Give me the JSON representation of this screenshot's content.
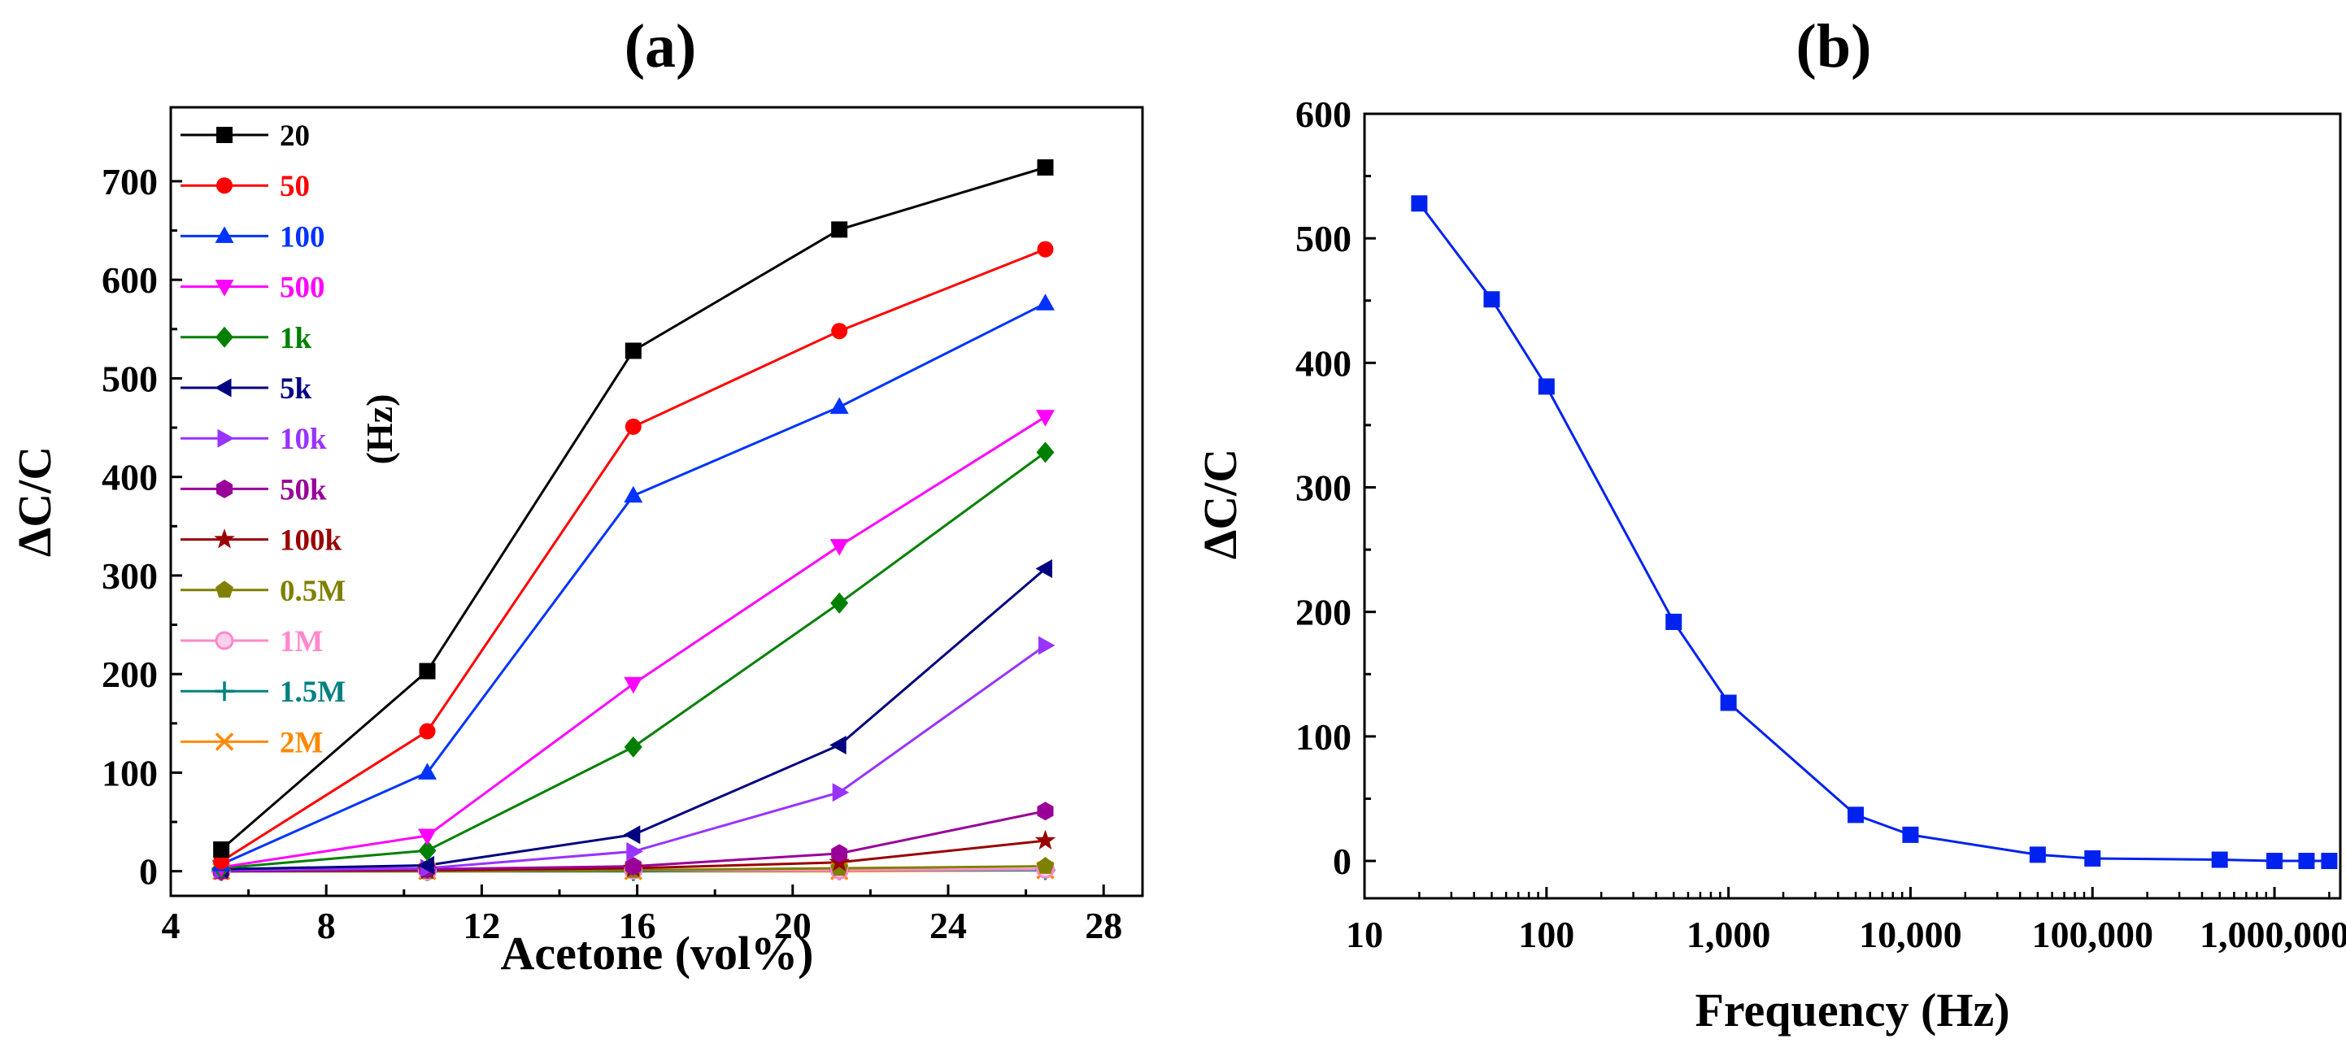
{
  "chart_data": [
    {
      "panel_label": "(a)",
      "type": "line",
      "xlabel": "Acetone (vol%)",
      "ylabel": "ΔC/C",
      "xlim": [
        4,
        29
      ],
      "ylim": [
        -25,
        775
      ],
      "xticks": [
        4,
        8,
        12,
        16,
        20,
        24,
        28
      ],
      "yticks": [
        0,
        100,
        200,
        300,
        400,
        500,
        600,
        700
      ],
      "legend_unit": "(Hz)",
      "legend_position": "top-left",
      "x": [
        5.3,
        10.6,
        15.9,
        21.2,
        26.5
      ],
      "series": [
        {
          "name": "20",
          "color": "#000000",
          "marker": "square",
          "values": [
            22,
            203,
            528,
            651,
            714
          ]
        },
        {
          "name": "50",
          "color": "#ff0000",
          "marker": "circle",
          "values": [
            10,
            142,
            451,
            548,
            631
          ]
        },
        {
          "name": "100",
          "color": "#0033ff",
          "marker": "triangle-up",
          "values": [
            7,
            100,
            381,
            471,
            576
          ]
        },
        {
          "name": "500",
          "color": "#ff00ff",
          "marker": "triangle-down",
          "values": [
            4,
            36,
            190,
            330,
            461
          ]
        },
        {
          "name": "1k",
          "color": "#008000",
          "marker": "diamond",
          "values": [
            3,
            21,
            126,
            272,
            425
          ]
        },
        {
          "name": "5k",
          "color": "#000080",
          "marker": "triangle-left",
          "values": [
            2,
            6,
            37,
            128,
            307
          ]
        },
        {
          "name": "10k",
          "color": "#9933ff",
          "marker": "triangle-right",
          "values": [
            1,
            3,
            20,
            80,
            229
          ]
        },
        {
          "name": "50k",
          "color": "#990099",
          "marker": "hexagon",
          "values": [
            0,
            2,
            5,
            18,
            61
          ]
        },
        {
          "name": "100k",
          "color": "#990000",
          "marker": "star",
          "values": [
            0,
            1,
            3,
            9,
            31
          ]
        },
        {
          "name": "0.5M",
          "color": "#808000",
          "marker": "pentagon",
          "values": [
            0,
            0,
            1,
            3,
            5
          ]
        },
        {
          "name": "1M",
          "color": "#ff88cc",
          "marker": "circle-half",
          "values": [
            0,
            0,
            1,
            1,
            2
          ]
        },
        {
          "name": "1.5M",
          "color": "#008080",
          "marker": "plus",
          "values": [
            0,
            0,
            0,
            1,
            1
          ]
        },
        {
          "name": "2M",
          "color": "#ff8800",
          "marker": "cross",
          "values": [
            0,
            0,
            0,
            0,
            1
          ]
        }
      ]
    },
    {
      "panel_label": "(b)",
      "type": "line",
      "xscale": "log",
      "xlabel": "Frequency (Hz)",
      "ylabel": "ΔC/C",
      "xlim": [
        10,
        2300000
      ],
      "ylim": [
        -30,
        600
      ],
      "xticks": [
        10,
        100,
        1000,
        10000,
        100000,
        1000000
      ],
      "xtick_labels": [
        "10",
        "100",
        "1,000",
        "10,000",
        "100,000",
        "1,000,000"
      ],
      "yticks": [
        0,
        100,
        200,
        300,
        400,
        500,
        600
      ],
      "color": "#0022ee",
      "marker": "square",
      "x": [
        20,
        50,
        100,
        500,
        1000,
        5000,
        10000,
        50000,
        100000,
        500000,
        1000000,
        1500000,
        2000000
      ],
      "values": [
        528,
        451,
        381,
        192,
        127,
        37,
        21,
        5,
        2,
        1,
        0,
        0,
        0
      ]
    }
  ]
}
